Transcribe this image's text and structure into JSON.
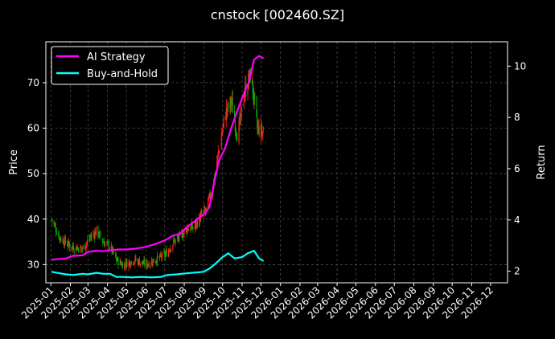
{
  "chart_data": {
    "type": "line",
    "title": "cnstock [002460.SZ]",
    "y_left_label": "Price",
    "y_right_label": "Return",
    "x_start": "2024-12-24",
    "x_end": "2026-12-28",
    "y_left_range": [
      26,
      79
    ],
    "y_right_range": [
      1.55,
      10.95
    ],
    "y_left_ticks": [
      30,
      40,
      50,
      60,
      70
    ],
    "y_right_ticks": [
      2,
      4,
      6,
      8,
      10
    ],
    "x_tick_labels": [
      "2025-01",
      "2025-02",
      "2025-03",
      "2025-04",
      "2025-05",
      "2025-06",
      "2025-07",
      "2025-08",
      "2025-09",
      "2025-10",
      "2025-11",
      "2025-12",
      "2026-01",
      "2026-02",
      "2026-03",
      "2026-04",
      "2026-05",
      "2026-06",
      "2026-07",
      "2026-08",
      "2026-09",
      "2026-10",
      "2026-11",
      "2026-12"
    ],
    "grid": true,
    "legend_position": "top-left",
    "colors": {
      "background": "#000000",
      "ai_strategy": "#ff00ff",
      "buy_and_hold": "#00ffff",
      "candle_up": "#ff2020",
      "candle_down": "#00aa00",
      "grid": "#555555"
    },
    "series": [
      {
        "name": "AI Strategy",
        "axis": "right",
        "points": [
          [
            "2025-01-02",
            2.45
          ],
          [
            "2025-01-15",
            2.48
          ],
          [
            "2025-01-25",
            2.5
          ],
          [
            "2025-02-05",
            2.6
          ],
          [
            "2025-02-20",
            2.62
          ],
          [
            "2025-03-01",
            2.75
          ],
          [
            "2025-03-15",
            2.8
          ],
          [
            "2025-03-25",
            2.78
          ],
          [
            "2025-04-05",
            2.82
          ],
          [
            "2025-04-20",
            2.85
          ],
          [
            "2025-05-01",
            2.85
          ],
          [
            "2025-05-15",
            2.88
          ],
          [
            "2025-06-01",
            2.95
          ],
          [
            "2025-06-15",
            3.05
          ],
          [
            "2025-07-01",
            3.2
          ],
          [
            "2025-07-15",
            3.4
          ],
          [
            "2025-07-25",
            3.45
          ],
          [
            "2025-08-05",
            3.72
          ],
          [
            "2025-08-15",
            3.9
          ],
          [
            "2025-08-25",
            4.1
          ],
          [
            "2025-09-01",
            4.2
          ],
          [
            "2025-09-10",
            4.5
          ],
          [
            "2025-09-18",
            5.5
          ],
          [
            "2025-09-25",
            6.3
          ],
          [
            "2025-10-05",
            6.8
          ],
          [
            "2025-10-15",
            7.6
          ],
          [
            "2025-10-25",
            8.3
          ],
          [
            "2025-11-05",
            9.0
          ],
          [
            "2025-11-12",
            9.4
          ],
          [
            "2025-11-20",
            10.25
          ],
          [
            "2025-11-28",
            10.4
          ],
          [
            "2025-12-05",
            10.3
          ]
        ]
      },
      {
        "name": "Buy-and-Hold",
        "axis": "right",
        "points": [
          [
            "2025-01-02",
            1.98
          ],
          [
            "2025-01-15",
            1.92
          ],
          [
            "2025-01-25",
            1.88
          ],
          [
            "2025-02-05",
            1.85
          ],
          [
            "2025-02-20",
            1.9
          ],
          [
            "2025-03-01",
            1.88
          ],
          [
            "2025-03-15",
            1.94
          ],
          [
            "2025-03-25",
            1.9
          ],
          [
            "2025-04-05",
            1.9
          ],
          [
            "2025-04-15",
            1.78
          ],
          [
            "2025-04-25",
            1.78
          ],
          [
            "2025-05-10",
            1.76
          ],
          [
            "2025-05-25",
            1.78
          ],
          [
            "2025-06-10",
            1.76
          ],
          [
            "2025-06-25",
            1.78
          ],
          [
            "2025-07-05",
            1.85
          ],
          [
            "2025-07-20",
            1.88
          ],
          [
            "2025-08-05",
            1.92
          ],
          [
            "2025-08-20",
            1.95
          ],
          [
            "2025-09-01",
            1.98
          ],
          [
            "2025-09-10",
            2.1
          ],
          [
            "2025-09-20",
            2.3
          ],
          [
            "2025-10-01",
            2.55
          ],
          [
            "2025-10-10",
            2.7
          ],
          [
            "2025-10-20",
            2.5
          ],
          [
            "2025-11-01",
            2.55
          ],
          [
            "2025-11-10",
            2.7
          ],
          [
            "2025-11-20",
            2.8
          ],
          [
            "2025-11-28",
            2.5
          ],
          [
            "2025-12-05",
            2.4
          ]
        ]
      }
    ],
    "price": {
      "axis": "left",
      "points": [
        [
          "2025-01-02",
          40
        ],
        [
          "2025-01-15",
          36
        ],
        [
          "2025-02-01",
          34
        ],
        [
          "2025-02-20",
          33.5
        ],
        [
          "2025-03-05",
          36
        ],
        [
          "2025-03-15",
          37.5
        ],
        [
          "2025-03-25",
          35
        ],
        [
          "2025-04-05",
          34
        ],
        [
          "2025-04-15",
          31
        ],
        [
          "2025-04-25",
          30
        ],
        [
          "2025-05-05",
          30.5
        ],
        [
          "2025-05-15",
          31
        ],
        [
          "2025-06-01",
          30
        ],
        [
          "2025-06-15",
          31
        ],
        [
          "2025-07-01",
          32
        ],
        [
          "2025-07-15",
          35
        ],
        [
          "2025-07-25",
          36
        ],
        [
          "2025-08-05",
          38
        ],
        [
          "2025-08-15",
          38
        ],
        [
          "2025-08-25",
          40
        ],
        [
          "2025-09-05",
          42
        ],
        [
          "2025-09-15",
          47
        ],
        [
          "2025-09-25",
          55
        ],
        [
          "2025-10-05",
          63
        ],
        [
          "2025-10-15",
          66
        ],
        [
          "2025-10-25",
          58
        ],
        [
          "2025-11-05",
          68
        ],
        [
          "2025-11-15",
          72
        ],
        [
          "2025-11-25",
          60
        ],
        [
          "2025-12-05",
          59
        ]
      ]
    }
  }
}
